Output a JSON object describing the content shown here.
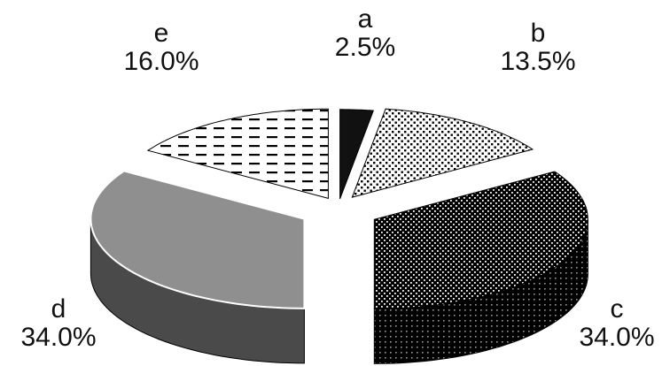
{
  "chart_data": {
    "type": "pie",
    "style": "3d-exploded",
    "slices": [
      {
        "label": "a",
        "value": 2.5,
        "value_label": "2.5%",
        "pattern": "solid-dark",
        "color": "#1a1a1a"
      },
      {
        "label": "b",
        "value": 13.5,
        "value_label": "13.5%",
        "pattern": "light-dots",
        "color": "#6e6e6e"
      },
      {
        "label": "c",
        "value": 34.0,
        "value_label": "34.0%",
        "pattern": "dense-dots",
        "color": "#111111"
      },
      {
        "label": "d",
        "value": 34.0,
        "value_label": "34.0%",
        "pattern": "solid-gray",
        "color": "#8a8a8a"
      },
      {
        "label": "e",
        "value": 16.0,
        "value_label": "16.0%",
        "pattern": "dashes",
        "color": "#8a8a8a"
      }
    ]
  }
}
